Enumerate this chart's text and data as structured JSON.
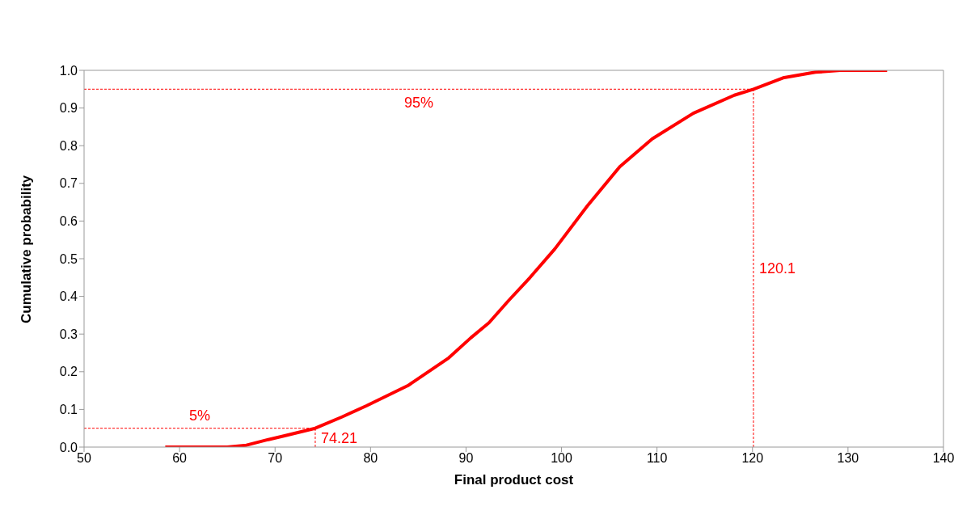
{
  "chart_data": {
    "type": "line",
    "xlabel": "Final product cost",
    "ylabel": "Cumulative  probability",
    "x": [
      58.5,
      62,
      65,
      67,
      69.3,
      71,
      74.21,
      77,
      79.6,
      83.9,
      88.2,
      90.5,
      92.4,
      94.5,
      96.7,
      99.3,
      102.7,
      106.1,
      109.5,
      113.8,
      118.1,
      120.1,
      123.2,
      126.6,
      129.2,
      134.1
    ],
    "series": [
      {
        "color": "#ff0000",
        "values": [
          0,
          0,
          0,
          0.005,
          0.02,
          0.03,
          0.05,
          0.08,
          0.11,
          0.163,
          0.237,
          0.29,
          0.33,
          0.39,
          0.45,
          0.526,
          0.64,
          0.744,
          0.818,
          0.886,
          0.934,
          0.95,
          0.98,
          0.995,
          1,
          1
        ]
      }
    ],
    "xlim": [
      50,
      140
    ],
    "xticks": [
      50,
      60,
      70,
      80,
      90,
      100,
      110,
      120,
      130,
      140
    ],
    "ylim": [
      0,
      1
    ],
    "yticks": [
      {
        "value": 0,
        "label": "0.0"
      },
      {
        "value": 0.1,
        "label": "0.1"
      },
      {
        "value": 0.2,
        "label": "0.2"
      },
      {
        "value": 0.3,
        "label": "0.3"
      },
      {
        "value": 0.4,
        "label": "0.4"
      },
      {
        "value": 0.5,
        "label": "0.5"
      },
      {
        "value": 0.6,
        "label": "0.6"
      },
      {
        "value": 0.7,
        "label": "0.7"
      },
      {
        "value": 0.8,
        "label": "0.8"
      },
      {
        "value": 0.9,
        "label": "0.9"
      },
      {
        "value": 1,
        "label": "1.0"
      }
    ],
    "ref_lines": [
      {
        "axis": "y",
        "value": 0.05,
        "label": "5%",
        "color": "#ff0000",
        "line_style": "dashed"
      },
      {
        "axis": "x",
        "value": 74.21,
        "label": "74.21",
        "color": "#ff0000",
        "line_style": "dashed"
      },
      {
        "axis": "y",
        "value": 0.95,
        "label": "95%",
        "color": "#ff0000",
        "line_style": "dashed"
      },
      {
        "axis": "x",
        "value": 120.1,
        "label": "120.1",
        "color": "#ff0000",
        "line_style": "dashed"
      }
    ],
    "grid": false,
    "legend": false,
    "marker": "none",
    "line_style": "solid"
  }
}
